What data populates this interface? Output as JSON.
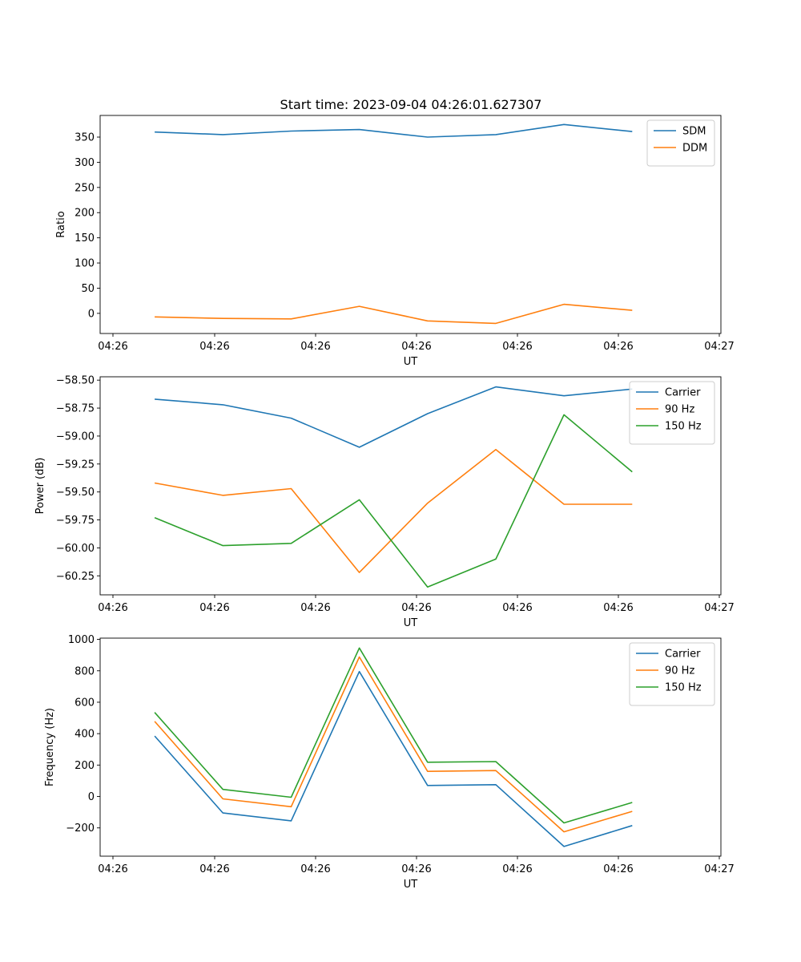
{
  "figure_title": "Start time: 2023-09-04 04:26:01.627307",
  "chart_data": [
    {
      "type": "line",
      "title": "Start time: 2023-09-04 04:26:01.627307",
      "xlabel": "UT",
      "ylabel": "Ratio",
      "x_tick_labels": [
        "04:26",
        "04:26",
        "04:26",
        "04:26",
        "04:26",
        "04:26",
        "04:27"
      ],
      "x": [
        1,
        2,
        3,
        4,
        5,
        6,
        7,
        8
      ],
      "xlim": [
        0.2,
        9.3
      ],
      "ylim": [
        -40,
        393
      ],
      "y_ticks": [
        0,
        50,
        100,
        150,
        200,
        250,
        300,
        350
      ],
      "y_tick_labels": [
        "0",
        "50",
        "100",
        "150",
        "200",
        "250",
        "300",
        "350"
      ],
      "legend_position": "top-right",
      "series": [
        {
          "name": "SDM",
          "color": "#1f77b4",
          "values": [
            360,
            355,
            362,
            365,
            350,
            355,
            375,
            361
          ]
        },
        {
          "name": "DDM",
          "color": "#ff7f0e",
          "values": [
            -7,
            -10,
            -11,
            14,
            -15,
            -20,
            18,
            6
          ]
        }
      ]
    },
    {
      "type": "line",
      "title": "",
      "xlabel": "UT",
      "ylabel": "Power (dB)",
      "x_tick_labels": [
        "04:26",
        "04:26",
        "04:26",
        "04:26",
        "04:26",
        "04:26",
        "04:27"
      ],
      "x": [
        1,
        2,
        3,
        4,
        5,
        6,
        7,
        8
      ],
      "xlim": [
        0.2,
        9.3
      ],
      "ylim": [
        -60.42,
        -58.47
      ],
      "y_ticks": [
        -58.5,
        -58.75,
        -59.0,
        -59.25,
        -59.5,
        -59.75,
        -60.0,
        -60.25
      ],
      "y_tick_labels": [
        "−58.50",
        "−58.75",
        "−59.00",
        "−59.25",
        "−59.50",
        "−59.75",
        "−60.00",
        "−60.25"
      ],
      "legend_position": "top-right",
      "series": [
        {
          "name": "Carrier",
          "color": "#1f77b4",
          "values": [
            -58.67,
            -58.72,
            -58.84,
            -59.1,
            -58.8,
            -58.56,
            -58.64,
            -58.58
          ]
        },
        {
          "name": "90 Hz",
          "color": "#ff7f0e",
          "values": [
            -59.42,
            -59.53,
            -59.47,
            -60.22,
            -59.6,
            -59.12,
            -59.61,
            -59.61
          ]
        },
        {
          "name": "150 Hz",
          "color": "#2ca02c",
          "values": [
            -59.73,
            -59.98,
            -59.96,
            -59.57,
            -60.35,
            -60.1,
            -58.81,
            -59.32
          ]
        }
      ]
    },
    {
      "type": "line",
      "title": "",
      "xlabel": "UT",
      "ylabel": "Frequency (Hz)",
      "x_tick_labels": [
        "04:26",
        "04:26",
        "04:26",
        "04:26",
        "04:26",
        "04:26",
        "04:27"
      ],
      "x": [
        1,
        2,
        3,
        4,
        5,
        6,
        7,
        8
      ],
      "xlim": [
        0.2,
        9.3
      ],
      "ylim": [
        -380,
        1008
      ],
      "y_ticks": [
        -200,
        0,
        200,
        400,
        600,
        800,
        1000
      ],
      "y_tick_labels": [
        "−200",
        "0",
        "200",
        "400",
        "600",
        "800",
        "1000"
      ],
      "legend_position": "top-right",
      "series": [
        {
          "name": "Carrier",
          "color": "#1f77b4",
          "values": [
            385,
            -105,
            -155,
            795,
            70,
            75,
            -318,
            -185
          ]
        },
        {
          "name": "90 Hz",
          "color": "#ff7f0e",
          "values": [
            478,
            -15,
            -65,
            888,
            160,
            165,
            -225,
            -95
          ]
        },
        {
          "name": "150 Hz",
          "color": "#2ca02c",
          "values": [
            535,
            45,
            -5,
            945,
            218,
            222,
            -168,
            -38
          ]
        }
      ]
    }
  ]
}
